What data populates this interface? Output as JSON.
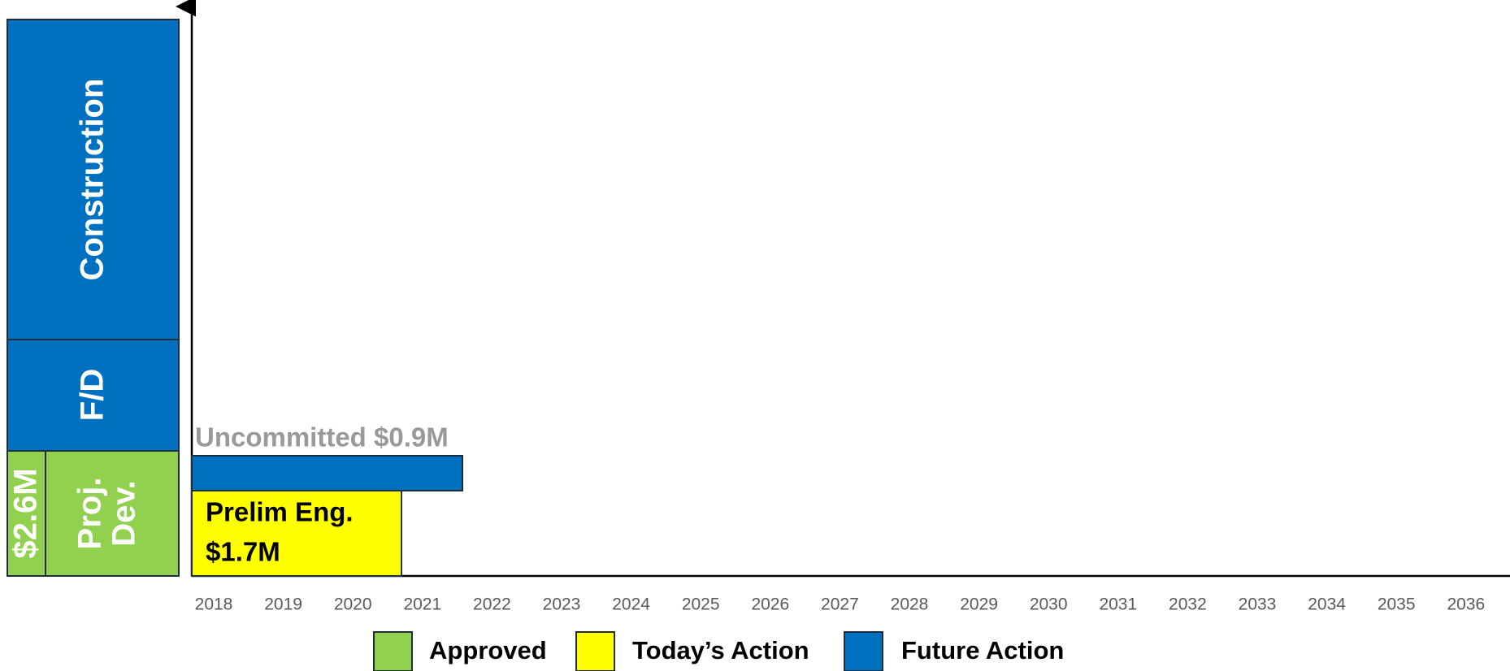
{
  "phases": [
    {
      "label": "Construction"
    },
    {
      "label": "F/D"
    },
    {
      "label": [
        "Proj.",
        "Dev."
      ]
    },
    {
      "label": "$2.6M"
    }
  ],
  "bars": [
    {
      "label": "Uncommitted $0.9M"
    },
    {
      "label": [
        "Prelim Eng.",
        "$1.7M"
      ]
    }
  ],
  "years": [
    "2018",
    "2019",
    "2020",
    "2021",
    "2022",
    "2023",
    "2024",
    "2025",
    "2026",
    "2027",
    "2028",
    "2029",
    "2030",
    "2031",
    "2032",
    "2033",
    "2034",
    "2035",
    "2036"
  ],
  "legend": [
    {
      "label": "Approved",
      "color": "#92d050"
    },
    {
      "label": "Today’s Action",
      "color": "#ffff00"
    },
    {
      "label": "Future Action",
      "color": "#0070c0"
    }
  ]
}
